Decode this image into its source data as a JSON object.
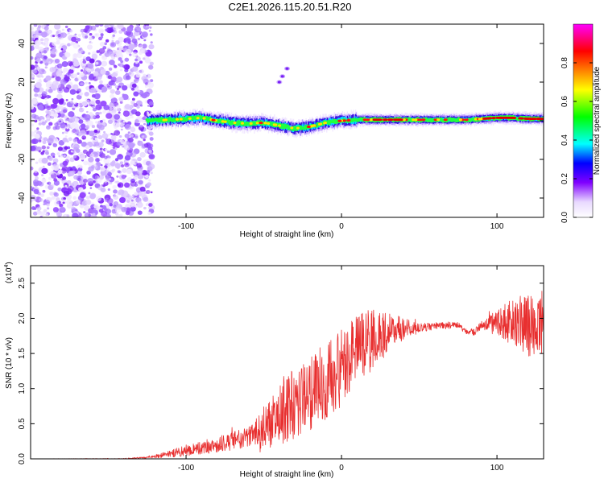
{
  "title": "C2E1.2026.115.20.51.R20",
  "chart_data": [
    {
      "type": "heatmap",
      "title": "C2E1.2026.115.20.51.R20",
      "xlabel": "Height of straight line (km)",
      "ylabel": "Frequency (Hz)",
      "xlim": [
        -200,
        130
      ],
      "ylim": [
        -50,
        50
      ],
      "xticks": [
        -100,
        0,
        100
      ],
      "yticks": [
        -40,
        -20,
        0,
        20,
        40
      ],
      "xtick_labels": [
        "-100",
        "0",
        "100"
      ],
      "ytick_labels": [
        "-40",
        "-20",
        "0",
        "20",
        "40"
      ],
      "noise_region_x": [
        -200,
        -125
      ],
      "signal_trace": {
        "x": [
          -125,
          -110,
          -100,
          -90,
          -80,
          -70,
          -60,
          -50,
          -40,
          -30,
          -20,
          -10,
          0,
          10,
          20,
          30,
          40,
          50,
          60,
          70,
          80,
          90,
          100,
          110,
          120,
          130
        ],
        "freq_hz": [
          0,
          0.5,
          1,
          1.5,
          0,
          -1,
          -1.5,
          -1,
          -2.5,
          -4,
          -3,
          -1,
          0,
          0.5,
          0.5,
          0.5,
          0.5,
          0.5,
          0.5,
          0.5,
          0.5,
          1,
          1.5,
          1.5,
          1,
          1
        ]
      },
      "secondary_echo": {
        "x": [
          -40,
          -38,
          -35
        ],
        "freq_hz": [
          20,
          23,
          27
        ]
      },
      "colorbar": {
        "label": "Normalized spectral amplitude",
        "range": [
          0,
          1
        ],
        "ticks": [
          0.0,
          0.2,
          0.4,
          0.6,
          0.8
        ],
        "tick_labels": [
          "0.0",
          "0.2",
          "0.4",
          "0.6",
          "0.8"
        ],
        "colors": [
          "#ffffff",
          "#e8d8ff",
          "#8000ff",
          "#0000ff",
          "#00ffff",
          "#00ff00",
          "#ffff00",
          "#ff8000",
          "#ff0000",
          "#ff00ff"
        ]
      }
    },
    {
      "type": "line",
      "xlabel": "Height of straight line (km)",
      "ylabel": "SNR (10 * v/v)",
      "multiplier_label": "(x10",
      "multiplier_exp": "4",
      "xlim": [
        -200,
        130
      ],
      "ylim": [
        0,
        2.75
      ],
      "xticks": [
        -100,
        0,
        100
      ],
      "yticks": [
        0.0,
        0.5,
        1.0,
        1.5,
        2.0,
        2.5
      ],
      "xtick_labels": [
        "-100",
        "0",
        "100"
      ],
      "ytick_labels": [
        "0.0",
        "0.5",
        "1.0",
        "1.5",
        "2.0",
        "2.5"
      ],
      "line_color": "#e83030",
      "trend": {
        "x": [
          -200,
          -140,
          -125,
          -110,
          -100,
          -80,
          -60,
          -50,
          -40,
          -30,
          -20,
          -10,
          0,
          10,
          20,
          30,
          40,
          50,
          60,
          70,
          75,
          80,
          85,
          90,
          100,
          110,
          120,
          130
        ],
        "y": [
          0.0,
          0.0,
          0.02,
          0.07,
          0.12,
          0.2,
          0.3,
          0.45,
          0.6,
          0.8,
          0.95,
          1.1,
          1.3,
          1.55,
          1.7,
          1.8,
          1.85,
          1.87,
          1.88,
          1.9,
          1.9,
          1.82,
          1.8,
          1.9,
          1.95,
          1.95,
          1.9,
          1.95
        ]
      },
      "noise_amplitude": {
        "x": [
          -200,
          -125,
          -100,
          -60,
          -40,
          -20,
          0,
          20,
          40,
          50,
          80,
          90,
          100,
          110,
          120,
          130
        ],
        "y": [
          0.0,
          0.01,
          0.08,
          0.15,
          0.45,
          0.55,
          0.55,
          0.45,
          0.15,
          0.06,
          0.04,
          0.06,
          0.2,
          0.35,
          0.45,
          0.45
        ]
      }
    }
  ]
}
